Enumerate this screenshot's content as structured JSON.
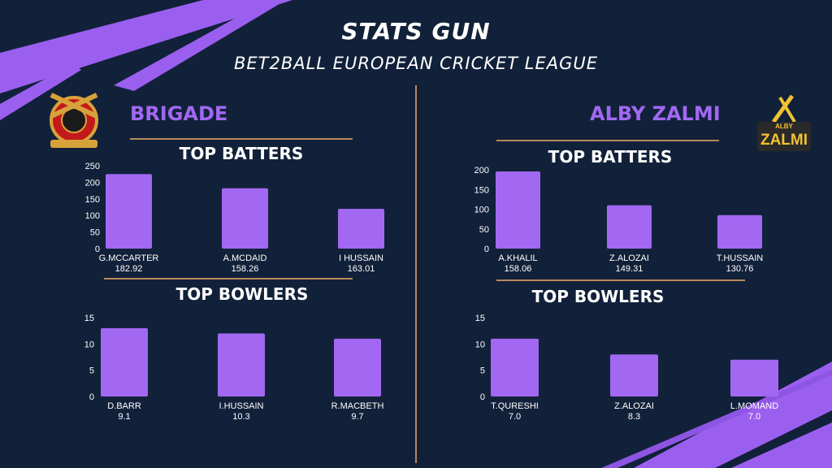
{
  "header": {
    "title": "STATS GUN",
    "subtitle": "BET2BALL EUROPEAN CRICKET LEAGUE"
  },
  "teams": [
    {
      "name": "BRIGADE",
      "logo": "brigade-crest-logo",
      "batters_title": "TOP BATTERS",
      "bowlers_title": "TOP BOWLERS"
    },
    {
      "name": "ALBY ZALMI",
      "logo": "alby-zalmi-logo",
      "logo_text": "ZALMI",
      "logo_small_text": "ALBY",
      "batters_title": "TOP BATTERS",
      "bowlers_title": "TOP BOWLERS"
    }
  ],
  "colors": {
    "background": "#12213a",
    "accent": "#a268f2",
    "divider": "#b8895a",
    "text": "#ffffff"
  },
  "chart_data": [
    {
      "id": "brigade-batters",
      "type": "bar",
      "title": "TOP BATTERS",
      "categories": [
        "G.MCCARTER",
        "A.MCDAID",
        "I HUSSAIN"
      ],
      "sub_labels": [
        "182.92",
        "158.26",
        "163.01"
      ],
      "values": [
        225,
        182,
        120
      ],
      "ylim": [
        0,
        250
      ],
      "yticks": [
        0,
        50,
        100,
        150,
        200,
        250
      ],
      "grid": false
    },
    {
      "id": "brigade-bowlers",
      "type": "bar",
      "title": "TOP BOWLERS",
      "categories": [
        "D.BARR",
        "I.HUSSAIN",
        "R.MACBETH"
      ],
      "sub_labels": [
        "9.1",
        "10.3",
        "9.7"
      ],
      "values": [
        13,
        12,
        11
      ],
      "ylim": [
        0,
        15
      ],
      "yticks": [
        0,
        5,
        10,
        15
      ],
      "grid": false
    },
    {
      "id": "alby-zalmi-batters",
      "type": "bar",
      "title": "TOP BATTERS",
      "categories": [
        "A.KHALIL",
        "Z.ALOZAI",
        "T.HUSSAIN"
      ],
      "sub_labels": [
        "158.06",
        "149.31",
        "130.76"
      ],
      "values": [
        196,
        110,
        85
      ],
      "ylim": [
        0,
        200
      ],
      "yticks": [
        0,
        50,
        100,
        150,
        200
      ],
      "grid": false
    },
    {
      "id": "alby-zalmi-bowlers",
      "type": "bar",
      "title": "TOP BOWLERS",
      "categories": [
        "T.QURESHI",
        "Z.ALOZAI",
        "L.MOMAND"
      ],
      "sub_labels": [
        "7.0",
        "8.3",
        "7.0"
      ],
      "values": [
        11,
        8,
        7
      ],
      "ylim": [
        0,
        15
      ],
      "yticks": [
        0,
        5,
        10,
        15
      ],
      "grid": false
    }
  ]
}
